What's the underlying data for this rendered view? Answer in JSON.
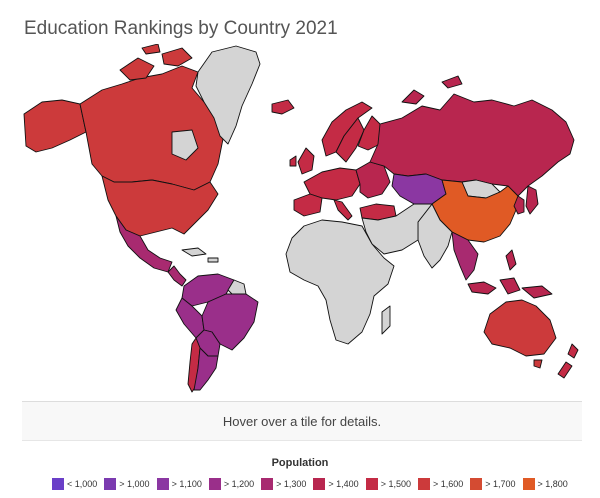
{
  "title": "Education Rankings by Country 2021",
  "hover_text": "Hover over a tile for details.",
  "legend": {
    "title": "Population",
    "items": [
      {
        "label": "< 1,000",
        "color": "#6a3fc8"
      },
      {
        "label": "> 1,000",
        "color": "#7b3bb0"
      },
      {
        "label": "> 1,100",
        "color": "#8b37a2"
      },
      {
        "label": "> 1,200",
        "color": "#9a2f8a"
      },
      {
        "label": "> 1,300",
        "color": "#a82a70"
      },
      {
        "label": "> 1,400",
        "color": "#b8264f"
      },
      {
        "label": "> 1,500",
        "color": "#c42b45"
      },
      {
        "label": "> 1,600",
        "color": "#cc3a3b"
      },
      {
        "label": "> 1,700",
        "color": "#d44b32"
      },
      {
        "label": "> 1,800",
        "color": "#e05a25"
      }
    ]
  },
  "nodata_color": "#d4d4d4",
  "regions": [
    {
      "name": "Canada",
      "bin": 7
    },
    {
      "name": "Alaska",
      "bin": 7
    },
    {
      "name": "United States",
      "bin": 7
    },
    {
      "name": "Mexico",
      "bin": 4
    },
    {
      "name": "Central America",
      "bin": 4
    },
    {
      "name": "Greenland",
      "bin": null
    },
    {
      "name": "Colombia & Venezuela",
      "bin": 3
    },
    {
      "name": "Peru",
      "bin": 3
    },
    {
      "name": "Brazil",
      "bin": 3
    },
    {
      "name": "Bolivia & Paraguay",
      "bin": 3
    },
    {
      "name": "Argentina",
      "bin": 3
    },
    {
      "name": "Chile",
      "bin": 6
    },
    {
      "name": "Iceland",
      "bin": 6
    },
    {
      "name": "Norway",
      "bin": 6
    },
    {
      "name": "Sweden",
      "bin": 6
    },
    {
      "name": "Finland",
      "bin": 6
    },
    {
      "name": "United Kingdom",
      "bin": 6
    },
    {
      "name": "Western Europe",
      "bin": 6
    },
    {
      "name": "Spain & Portugal",
      "bin": 6
    },
    {
      "name": "Eastern Europe",
      "bin": 5
    },
    {
      "name": "Turkey",
      "bin": 6
    },
    {
      "name": "Russia",
      "bin": 5
    },
    {
      "name": "Kazakhstan",
      "bin": 2
    },
    {
      "name": "Mongolia",
      "bin": null
    },
    {
      "name": "China",
      "bin": 9
    },
    {
      "name": "Japan",
      "bin": 5
    },
    {
      "name": "Korea",
      "bin": 5
    },
    {
      "name": "Southeast Asia",
      "bin": 4
    },
    {
      "name": "Indonesia",
      "bin": 5
    },
    {
      "name": "Philippines",
      "bin": 5
    },
    {
      "name": "Australia",
      "bin": 7
    },
    {
      "name": "New Zealand",
      "bin": 6
    },
    {
      "name": "Africa",
      "bin": null
    },
    {
      "name": "Middle East",
      "bin": null
    },
    {
      "name": "India",
      "bin": null
    },
    {
      "name": "Madagascar",
      "bin": null
    }
  ]
}
